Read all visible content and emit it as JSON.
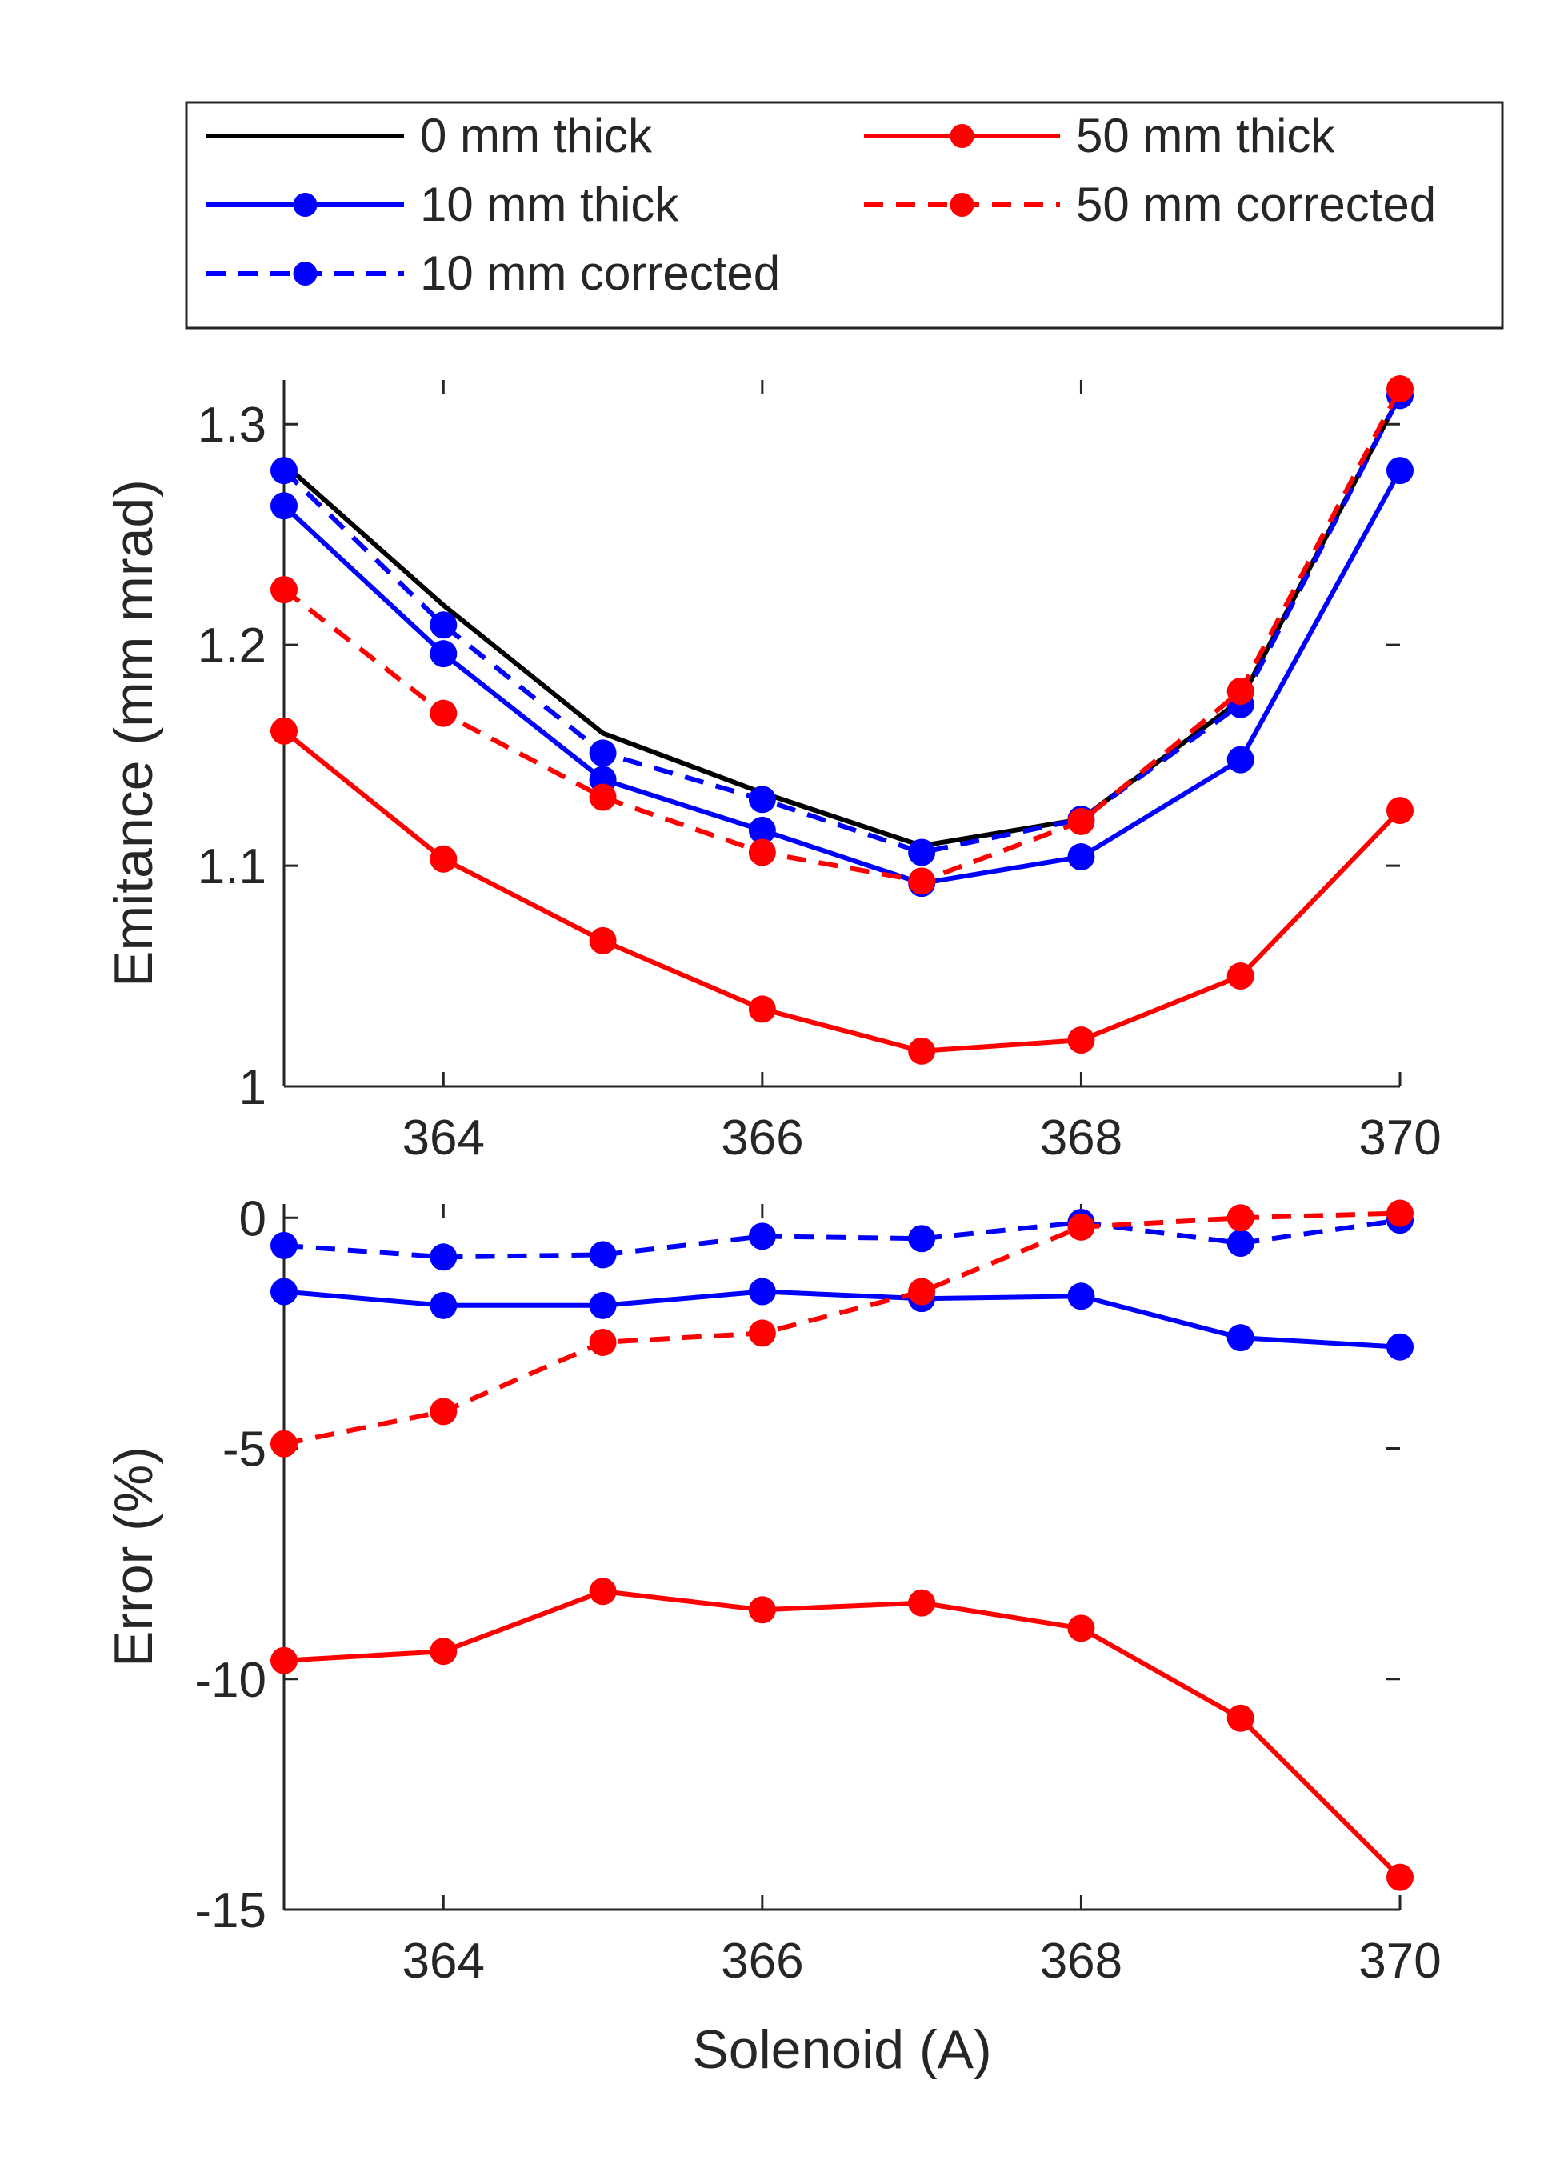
{
  "chart_data": [
    {
      "type": "line",
      "panel": "top",
      "title": "",
      "xlabel": "",
      "ylabel": "Emitance (mm mrad)",
      "xlim": [
        363,
        370
      ],
      "ylim": [
        1.0,
        1.32
      ],
      "x": [
        363,
        364,
        365,
        366,
        367,
        368,
        369,
        370
      ],
      "xticks": [
        364,
        366,
        368,
        370
      ],
      "xtick_labels": [
        "364",
        "366",
        "368",
        "370"
      ],
      "yticks": [
        1.0,
        1.1,
        1.2,
        1.3
      ],
      "ytick_labels": [
        "1",
        "1.1",
        "1.2",
        "1.3"
      ],
      "series": [
        {
          "name": "0 mm thick",
          "color": "#000000",
          "dashed": false,
          "markers": false,
          "values": [
            1.282,
            1.218,
            1.16,
            1.133,
            1.109,
            1.121,
            1.175,
            1.313
          ]
        },
        {
          "name": "10 mm thick",
          "color": "#0000ff",
          "dashed": false,
          "markers": true,
          "values": [
            1.263,
            1.196,
            1.139,
            1.116,
            1.092,
            1.104,
            1.148,
            1.279
          ]
        },
        {
          "name": "10 mm corrected",
          "color": "#0000ff",
          "dashed": true,
          "markers": true,
          "values": [
            1.279,
            1.209,
            1.151,
            1.13,
            1.106,
            1.121,
            1.173,
            1.313
          ]
        },
        {
          "name": "50 mm thick",
          "color": "#ff0000",
          "dashed": false,
          "markers": true,
          "values": [
            1.161,
            1.103,
            1.066,
            1.035,
            1.016,
            1.021,
            1.05,
            1.125
          ]
        },
        {
          "name": "50 mm corrected",
          "color": "#ff0000",
          "dashed": true,
          "markers": true,
          "values": [
            1.225,
            1.169,
            1.131,
            1.106,
            1.093,
            1.12,
            1.179,
            1.316
          ]
        }
      ]
    },
    {
      "type": "line",
      "panel": "bottom",
      "title": "",
      "xlabel": "Solenoid (A)",
      "ylabel": "Error (%)",
      "xlim": [
        363,
        370
      ],
      "ylim": [
        -15,
        0.3
      ],
      "x": [
        363,
        364,
        365,
        366,
        367,
        368,
        369,
        370
      ],
      "xticks": [
        364,
        366,
        368,
        370
      ],
      "xtick_labels": [
        "364",
        "366",
        "368",
        "370"
      ],
      "yticks": [
        0,
        -5,
        -10,
        -15
      ],
      "ytick_labels": [
        "0",
        "-5",
        "-10",
        "-15"
      ],
      "series": [
        {
          "name": "10 mm thick",
          "color": "#0000ff",
          "dashed": false,
          "markers": true,
          "values": [
            -1.6,
            -1.9,
            -1.9,
            -1.6,
            -1.75,
            -1.7,
            -2.6,
            -2.8
          ]
        },
        {
          "name": "10 mm corrected",
          "color": "#0000ff",
          "dashed": true,
          "markers": true,
          "values": [
            -0.6,
            -0.85,
            -0.8,
            -0.4,
            -0.45,
            -0.1,
            -0.55,
            -0.05
          ]
        },
        {
          "name": "50 mm thick",
          "color": "#ff0000",
          "dashed": false,
          "markers": true,
          "values": [
            -9.6,
            -9.4,
            -8.1,
            -8.5,
            -8.35,
            -8.9,
            -10.85,
            -14.3
          ]
        },
        {
          "name": "50 mm corrected",
          "color": "#ff0000",
          "dashed": true,
          "markers": true,
          "values": [
            -4.9,
            -4.2,
            -2.7,
            -2.5,
            -1.6,
            -0.2,
            0.0,
            0.1
          ]
        }
      ]
    }
  ],
  "legend": {
    "placement": "top",
    "entries": [
      {
        "label": "0 mm thick",
        "color": "#000000",
        "dashed": false,
        "marker": false
      },
      {
        "label": "10 mm thick",
        "color": "#0000ff",
        "dashed": false,
        "marker": true
      },
      {
        "label": "10 mm corrected",
        "color": "#0000ff",
        "dashed": true,
        "marker": true
      },
      {
        "label": "50 mm thick",
        "color": "#ff0000",
        "dashed": false,
        "marker": true
      },
      {
        "label": "50 mm corrected",
        "color": "#ff0000",
        "dashed": true,
        "marker": true
      }
    ]
  }
}
